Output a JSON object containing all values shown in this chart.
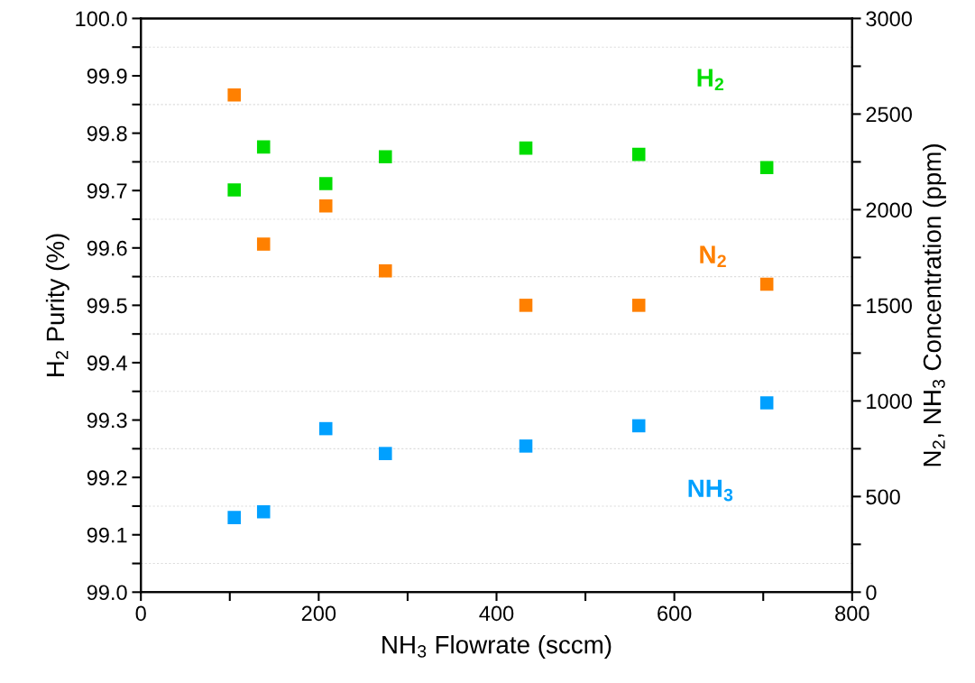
{
  "chart_data": {
    "type": "scatter",
    "xlabel": "NH$_{3}$ Flowrate (sccm)",
    "ylabel": "H$_{2}$ Purity (%)",
    "y2label": "N$_{2}$, NH$_{3}$ Concentration (ppm)",
    "x": [
      105,
      138,
      208,
      275,
      433,
      560,
      704
    ],
    "series": [
      {
        "name": "H$_{2}$",
        "color": "#00dd00",
        "values": [
          99.701,
          99.776,
          99.712,
          99.759,
          99.774,
          99.763,
          99.74
        ]
      },
      {
        "name": "N$_{2}$",
        "color": "#ff8000",
        "axis": "y2",
        "values": [
          2600,
          1820,
          2020,
          1680,
          1500,
          1500,
          1610
        ]
      },
      {
        "name": "NH$_{3}$",
        "color": "#00a0ff",
        "axis": "y2",
        "values": [
          390,
          420,
          855,
          725,
          764,
          870,
          990
        ]
      }
    ],
    "marker": "square",
    "legend": false,
    "grid": "y",
    "xlim": [
      0,
      800
    ],
    "xticks": [
      0,
      {
        "value": 100,
        "label": null
      },
      200,
      {
        "value": 300,
        "label": null
      },
      400,
      {
        "value": 500,
        "label": null
      },
      600,
      {
        "value": 700,
        "label": null
      },
      800
    ],
    "ylim": [
      99.0,
      100.0
    ],
    "yticks": [
      {
        "value": 99.0,
        "label": "99.0"
      },
      {
        "value": 99.05,
        "label": null
      },
      {
        "value": 99.1,
        "label": "99.1"
      },
      {
        "value": 99.15,
        "label": null
      },
      {
        "value": 99.2,
        "label": "99.2"
      },
      {
        "value": 99.25,
        "label": null
      },
      {
        "value": 99.3,
        "label": "99.3"
      },
      {
        "value": 99.35,
        "label": null
      },
      {
        "value": 99.4,
        "label": "99.4"
      },
      {
        "value": 99.45,
        "label": null
      },
      {
        "value": 99.5,
        "label": "99.5"
      },
      {
        "value": 99.55,
        "label": null
      },
      {
        "value": 99.6,
        "label": "99.6"
      },
      {
        "value": 99.65,
        "label": null
      },
      {
        "value": 99.7,
        "label": "99.7"
      },
      {
        "value": 99.75,
        "label": null
      },
      {
        "value": 99.8,
        "label": "99.8"
      },
      {
        "value": 99.85,
        "label": null
      },
      {
        "value": 99.9,
        "label": "99.9"
      },
      {
        "value": 99.95,
        "label": null
      },
      {
        "value": 100.0,
        "label": "100.0"
      }
    ],
    "y2lim": [
      0,
      3000
    ],
    "y2ticks": [
      0,
      {
        "value": 250,
        "label": null
      },
      500,
      {
        "value": 750,
        "label": null
      },
      1000,
      {
        "value": 1250,
        "label": null
      },
      1500,
      {
        "value": 1750,
        "label": null
      },
      2000,
      {
        "value": 2250,
        "label": null
      },
      2500,
      {
        "value": 2750,
        "label": null
      },
      3000
    ]
  }
}
